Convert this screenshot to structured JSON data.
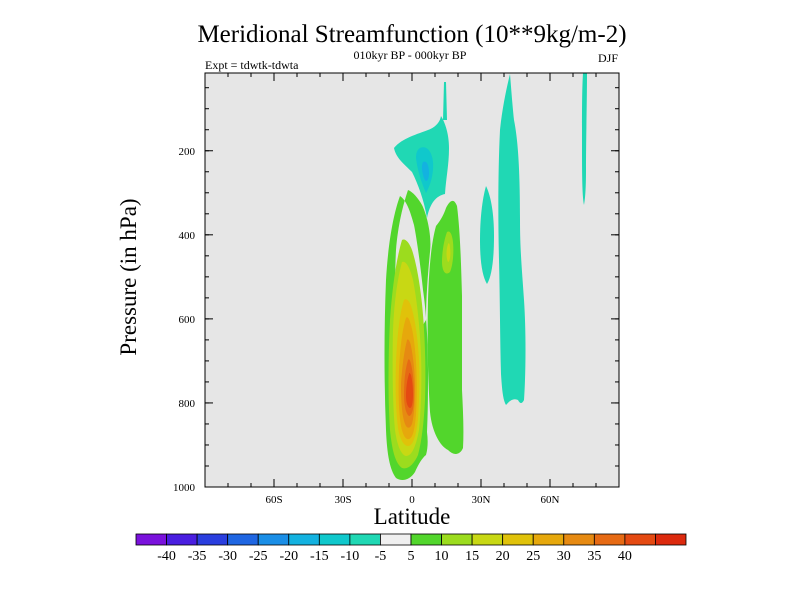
{
  "colors": {
    "plot_bg": "#e6e6e6",
    "page_bg": "#ffffff",
    "levels": [
      "#7a12dc",
      "#4a1ee0",
      "#2a3ede",
      "#1f66e2",
      "#1a8ee6",
      "#13b2e0",
      "#10c8cc",
      "#20d8b4",
      "#f0f0f0",
      "#52d62c",
      "#9cdc1e",
      "#c8d814",
      "#e0c20a",
      "#e6a80c",
      "#e68a12",
      "#e66a14",
      "#e44a12",
      "#dc2a0e"
    ]
  },
  "chart_data": {
    "type": "contour",
    "title": "Meridional Streamfunction (10**9kg/m-2)",
    "subtitle": "010kyr BP - 000kyr BP",
    "left_note": "Expt = tdwtk-tdwta",
    "right_note": "DJF",
    "xlabel": "Latitude",
    "ylabel": "Pressure (in hPa)",
    "xlim": [
      -90,
      90
    ],
    "ylim_pressure_hPa": [
      1000,
      15
    ],
    "x_ticks": [
      {
        "value": -60,
        "label": "60S"
      },
      {
        "value": -30,
        "label": "30S"
      },
      {
        "value": 0,
        "label": "0"
      },
      {
        "value": 30,
        "label": "30N"
      },
      {
        "value": 60,
        "label": "60N"
      }
    ],
    "y_ticks": [
      {
        "value": 200,
        "label": "200"
      },
      {
        "value": 400,
        "label": "400"
      },
      {
        "value": 600,
        "label": "600"
      },
      {
        "value": 800,
        "label": "800"
      },
      {
        "value": 1000,
        "label": "1000"
      }
    ],
    "colorbar": {
      "labels": [
        "-40",
        "-35",
        "-30",
        "-25",
        "-20",
        "-15",
        "-10",
        "-5",
        "5",
        "10",
        "15",
        "20",
        "25",
        "30",
        "35",
        "40"
      ]
    },
    "features": [
      {
        "name": "positive-cell",
        "center_lat": 0,
        "center_p": 770,
        "peak": 35,
        "lat_range": [
          -10,
          5
        ],
        "p_range": [
          290,
          980
        ]
      },
      {
        "name": "secondary-positive-cell",
        "center_lat": 12,
        "center_p": 500,
        "peak": 15,
        "lat_range": [
          6,
          22
        ],
        "p_range": [
          300,
          960
        ]
      },
      {
        "name": "upper-negative-cell",
        "center_lat": 7,
        "center_p": 230,
        "peak": -15,
        "lat_range": [
          -6,
          17
        ],
        "p_range": [
          130,
          310
        ]
      },
      {
        "name": "negative-band-35N",
        "center_lat": 42,
        "center_p": 450,
        "peak": -10,
        "lat_range": [
          30,
          47
        ],
        "p_range": [
          10,
          800
        ]
      },
      {
        "name": "negative-band-75N",
        "center_lat": 76,
        "center_p": 200,
        "peak": -10,
        "lat_range": [
          75,
          77
        ],
        "p_range": [
          15,
          360
        ]
      }
    ]
  }
}
